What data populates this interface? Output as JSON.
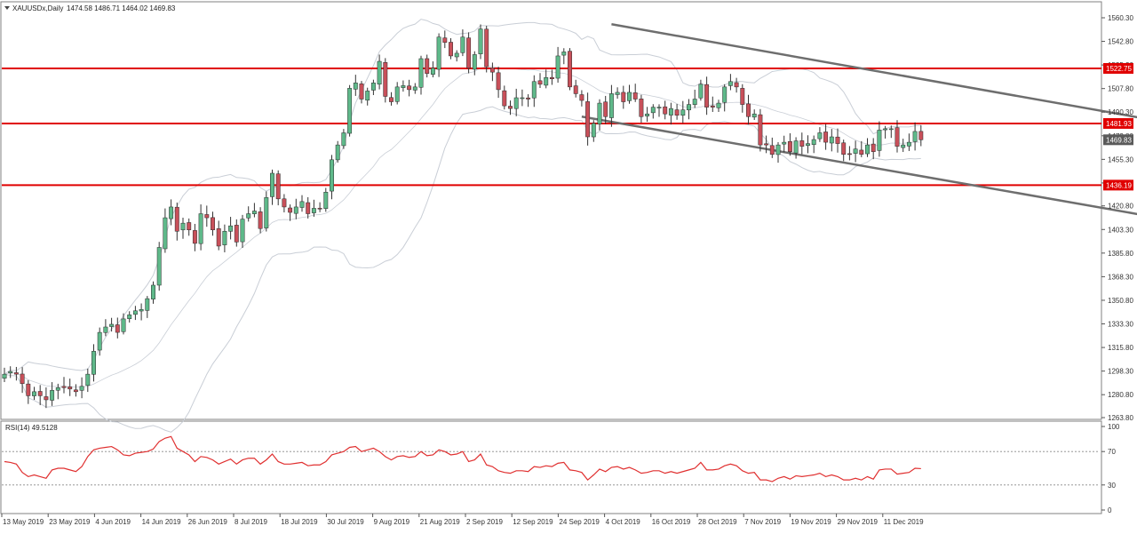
{
  "header": {
    "symbol": "XAUUSDx,Daily",
    "ohlc": "1474.58 1486.71 1464.02 1469.83"
  },
  "colors": {
    "bull": "#5fb98a",
    "bear": "#c8505a",
    "wick": "#333333",
    "level_line": "#e00000",
    "channel_line": "#6e6e6e",
    "band": "#c9ced6",
    "rsi_line": "#e03030",
    "axis_text": "#333333",
    "price_tag": "#e00000",
    "current_tag": "#5a5a5a"
  },
  "rsi": {
    "label": "RSI(14) 49.5128",
    "ticks": [
      "100",
      "70",
      "30",
      "0"
    ]
  },
  "chart_data": {
    "type": "candlestick",
    "y_ticks": [
      "1560.30",
      "1542.80",
      "1525.30",
      "1507.80",
      "1490.30",
      "1472.80",
      "1455.30",
      "1437.80",
      "1420.80",
      "1403.30",
      "1385.80",
      "1368.30",
      "1350.80",
      "1333.30",
      "1315.80",
      "1298.30",
      "1280.80",
      "1263.80"
    ],
    "ylim": [
      1263.8,
      1560.3
    ],
    "x_labels": [
      "13 May 2019",
      "23 May 2019",
      "4 Jun 2019",
      "14 Jun 2019",
      "26 Jun 2019",
      "8 Jul 2019",
      "18 Jul 2019",
      "30 Jul 2019",
      "9 Aug 2019",
      "21 Aug 2019",
      "2 Sep 2019",
      "12 Sep 2019",
      "24 Sep 2019",
      "4 Oct 2019",
      "16 Oct 2019",
      "28 Oct 2019",
      "7 Nov 2019",
      "19 Nov 2019",
      "29 Nov 2019",
      "11 Dec 2019"
    ],
    "levels": [
      {
        "value": 1522.75,
        "label": "1522.75"
      },
      {
        "value": 1481.93,
        "label": "1481.93"
      },
      {
        "value": 1436.19,
        "label": "1436.19"
      }
    ],
    "current_price": {
      "value": 1469.83,
      "label": "1469.83"
    },
    "channel": [
      {
        "from": [
          102,
          1555.5
        ],
        "to": [
          218,
          1465
        ]
      },
      {
        "from": [
          97,
          1487
        ],
        "to": [
          212,
          1398
        ]
      }
    ],
    "closes": [
      1296,
      1298,
      1296,
      1289,
      1280,
      1283,
      1280,
      1277,
      1284,
      1286,
      1286,
      1285,
      1283,
      1287,
      1296,
      1313,
      1327,
      1331,
      1333,
      1327,
      1337,
      1340,
      1343,
      1344,
      1352,
      1362,
      1390,
      1412,
      1420,
      1402,
      1408,
      1403,
      1393,
      1415,
      1412,
      1403,
      1391,
      1402,
      1406,
      1394,
      1411,
      1415,
      1417,
      1404,
      1427,
      1445,
      1426,
      1420,
      1416,
      1420,
      1424,
      1415,
      1419,
      1419,
      1431,
      1455,
      1466,
      1475,
      1508,
      1512,
      1500,
      1506,
      1512,
      1528,
      1502,
      1498,
      1509,
      1510,
      1507,
      1509,
      1530,
      1519,
      1523,
      1546,
      1542,
      1532,
      1534,
      1546,
      1523,
      1533,
      1552,
      1524,
      1520,
      1507,
      1495,
      1493,
      1501,
      1501,
      1500,
      1513,
      1511,
      1516,
      1515,
      1532,
      1535,
      1509,
      1504,
      1499,
      1472,
      1482,
      1497,
      1487,
      1504,
      1505,
      1498,
      1505,
      1500,
      1487,
      1489,
      1494,
      1494,
      1489,
      1493,
      1488,
      1492,
      1496,
      1500,
      1511,
      1494,
      1494,
      1497,
      1509,
      1513,
      1509,
      1496,
      1487,
      1489,
      1466,
      1466,
      1459,
      1466,
      1468,
      1461,
      1469,
      1465,
      1467,
      1470,
      1475,
      1468,
      1472,
      1467,
      1459,
      1459,
      1463,
      1459,
      1466,
      1461,
      1477,
      1478,
      1478,
      1465,
      1466,
      1468,
      1476,
      1469.83
    ],
    "rsi_values": [
      58,
      57,
      55,
      45,
      40,
      42,
      40,
      38,
      48,
      50,
      50,
      48,
      46,
      52,
      64,
      72,
      74,
      75,
      76,
      72,
      66,
      65,
      68,
      69,
      70,
      73,
      82,
      86,
      88,
      74,
      70,
      66,
      58,
      64,
      63,
      60,
      55,
      58,
      61,
      55,
      60,
      62,
      62,
      55,
      60,
      67,
      58,
      55,
      55,
      56,
      57,
      53,
      54,
      54,
      58,
      66,
      68,
      70,
      75,
      76,
      70,
      72,
      74,
      70,
      64,
      60,
      64,
      65,
      63,
      64,
      70,
      65,
      66,
      72,
      70,
      66,
      67,
      70,
      58,
      60,
      67,
      54,
      52,
      47,
      45,
      44,
      47,
      47,
      46,
      52,
      51,
      53,
      52,
      56,
      57,
      48,
      47,
      45,
      36,
      42,
      49,
      46,
      51,
      52,
      49,
      51,
      48,
      44,
      45,
      47,
      47,
      44,
      46,
      44,
      46,
      48,
      50,
      57,
      48,
      48,
      49,
      53,
      55,
      53,
      47,
      44,
      45,
      36,
      36,
      34,
      38,
      40,
      37,
      41,
      40,
      41,
      42,
      44,
      40,
      42,
      40,
      36,
      36,
      38,
      36,
      40,
      37,
      48,
      49,
      49,
      43,
      44,
      45,
      50,
      49.51
    ]
  }
}
